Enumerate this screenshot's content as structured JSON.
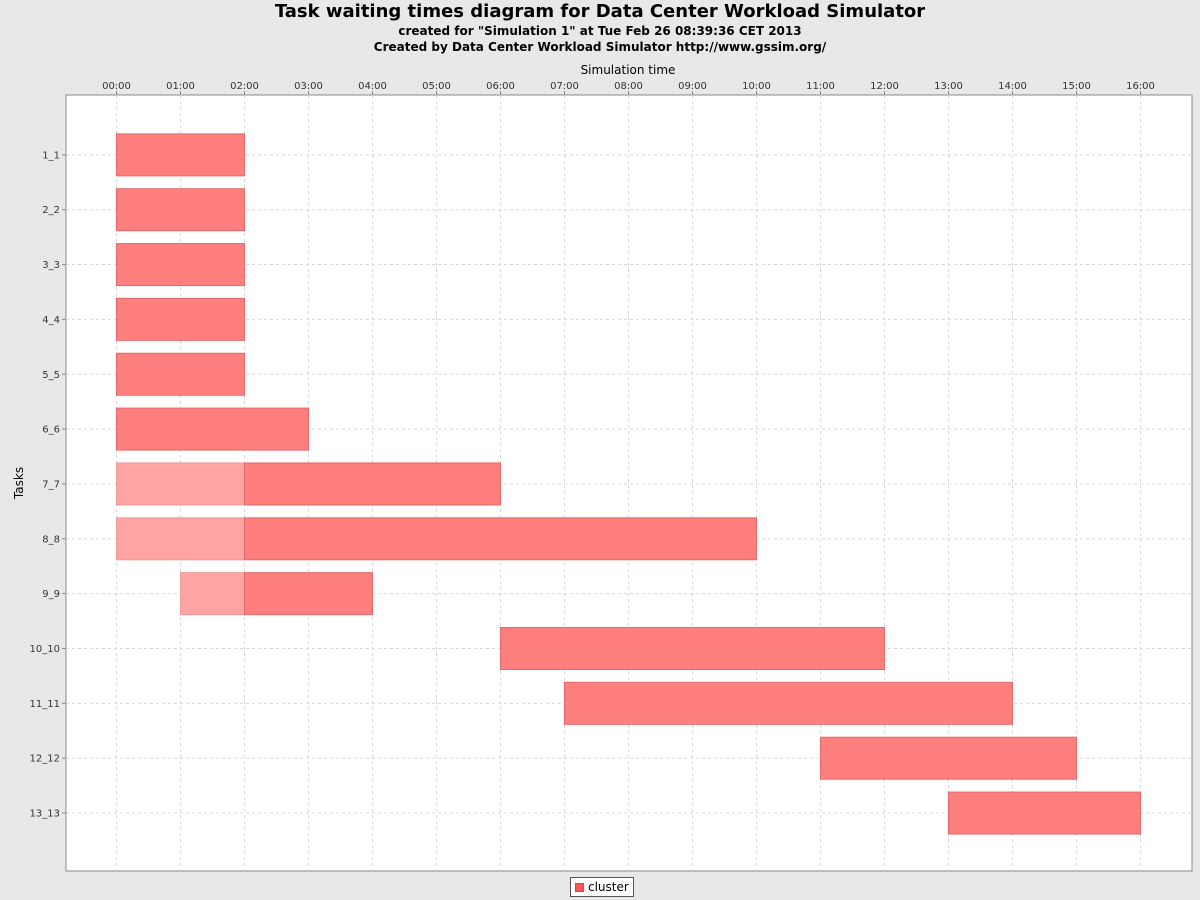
{
  "chart_data": {
    "type": "bar",
    "orientation": "horizontal-gantt",
    "title": "Task waiting times diagram for Data Center Workload Simulator",
    "subtitles": [
      "created for \"Simulation 1\" at Tue Feb 26 08:39:36 CET 2013",
      "Created by Data Center Workload Simulator http://www.gssim.org/"
    ],
    "xlabel": "Simulation time",
    "ylabel": "Tasks",
    "x_axis_position": "top",
    "xlim": [
      -0.8,
      17.0
    ],
    "x_tick_values": [
      0,
      1,
      2,
      3,
      4,
      5,
      6,
      7,
      8,
      9,
      10,
      11,
      12,
      13,
      14,
      15,
      16
    ],
    "x_ticks": [
      "00:00",
      "01:00",
      "02:00",
      "03:00",
      "04:00",
      "05:00",
      "06:00",
      "07:00",
      "08:00",
      "09:00",
      "10:00",
      "11:00",
      "12:00",
      "13:00",
      "14:00",
      "15:00",
      "16:00"
    ],
    "grid": true,
    "legend_placement": "bottom-center",
    "series": [
      {
        "name": "cluster",
        "color": "#ff5555",
        "waiting_color": "#ffa3a3",
        "tasks": [
          {
            "label": "1_1",
            "wait_start": null,
            "start": 0,
            "end": 2
          },
          {
            "label": "2_2",
            "wait_start": null,
            "start": 0,
            "end": 2
          },
          {
            "label": "3_3",
            "wait_start": null,
            "start": 0,
            "end": 2
          },
          {
            "label": "4_4",
            "wait_start": null,
            "start": 0,
            "end": 2
          },
          {
            "label": "5_5",
            "wait_start": null,
            "start": 0,
            "end": 2
          },
          {
            "label": "6_6",
            "wait_start": null,
            "start": 0,
            "end": 3
          },
          {
            "label": "7_7",
            "wait_start": 0,
            "start": 2,
            "end": 6
          },
          {
            "label": "8_8",
            "wait_start": 0,
            "start": 2,
            "end": 10
          },
          {
            "label": "9_9",
            "wait_start": 1,
            "start": 2,
            "end": 4
          },
          {
            "label": "10_10",
            "wait_start": null,
            "start": 6,
            "end": 12
          },
          {
            "label": "11_11",
            "wait_start": null,
            "start": 7,
            "end": 14
          },
          {
            "label": "12_12",
            "wait_start": null,
            "start": 11,
            "end": 15
          },
          {
            "label": "13_13",
            "wait_start": null,
            "start": 13,
            "end": 16
          }
        ]
      }
    ]
  }
}
